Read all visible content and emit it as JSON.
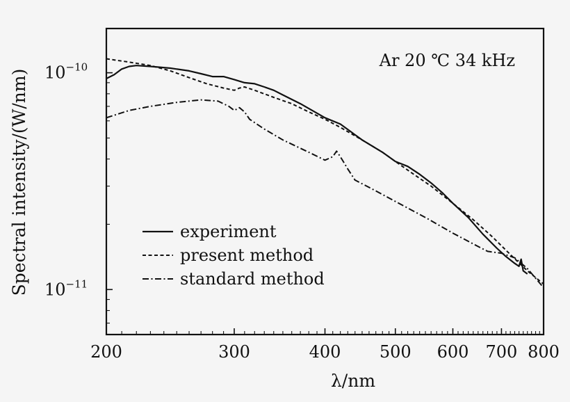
{
  "chart_data": {
    "type": "line",
    "title": "",
    "annotation": "Ar 20 ℃ 34 kHz",
    "xlabel": "λ/nm",
    "ylabel": "Spectral intensity/(W/nm)",
    "x_scale": "log",
    "y_scale": "log",
    "xlim": [
      200,
      800
    ],
    "ylim": [
      6.2e-12,
      1.6e-10
    ],
    "x_ticks": [
      200,
      300,
      400,
      500,
      600,
      700,
      800
    ],
    "x_tick_labels": [
      "200",
      "300",
      "400",
      "500",
      "600",
      "700",
      "800"
    ],
    "y_ticks": [
      {
        "value": 1e-10,
        "mantissa": "10",
        "exponent": "−10"
      },
      {
        "value": 1e-11,
        "mantissa": "10",
        "exponent": "−11"
      }
    ],
    "grid": false,
    "legend_position": "bottom-left",
    "series": [
      {
        "name": "experiment",
        "style": "solid",
        "x": [
          200,
          205,
          210,
          215,
          220,
          230,
          245,
          260,
          270,
          280,
          290,
          300,
          310,
          320,
          330,
          340,
          350,
          370,
          400,
          420,
          450,
          480,
          500,
          520,
          540,
          560,
          580,
          600,
          630,
          660,
          690,
          710,
          730,
          740,
          745,
          750,
          760
        ],
        "y": [
          9.4e-11,
          9.8e-11,
          1.04e-10,
          1.07e-10,
          1.08e-10,
          1.07e-10,
          1.05e-10,
          1.02e-10,
          9.9e-11,
          9.6e-11,
          9.6e-11,
          9.3e-11,
          9e-11,
          8.9e-11,
          8.6e-11,
          8.3e-11,
          7.9e-11,
          7.2e-11,
          6.2e-11,
          5.8e-11,
          4.9e-11,
          4.3e-11,
          3.9e-11,
          3.7e-11,
          3.4e-11,
          3.1e-11,
          2.8e-11,
          2.5e-11,
          2.15e-11,
          1.8e-11,
          1.55e-11,
          1.42e-11,
          1.32e-11,
          1.28e-11,
          1.38e-11,
          1.22e-11,
          1.18e-11
        ]
      },
      {
        "name": "present method",
        "style": "dashed",
        "x": [
          200,
          215,
          230,
          245,
          260,
          275,
          290,
          300,
          305,
          310,
          320,
          340,
          360,
          380,
          400,
          420,
          450,
          480,
          500,
          530,
          560,
          600,
          640,
          680,
          720,
          760,
          800
        ],
        "y": [
          1.16e-10,
          1.12e-10,
          1.08e-10,
          1.02e-10,
          9.5e-11,
          8.9e-11,
          8.5e-11,
          8.3e-11,
          8.5e-11,
          8.6e-11,
          8.3e-11,
          7.7e-11,
          7.2e-11,
          6.6e-11,
          6.1e-11,
          5.6e-11,
          4.9e-11,
          4.3e-11,
          3.9e-11,
          3.4e-11,
          3e-11,
          2.5e-11,
          2.1e-11,
          1.75e-11,
          1.45e-11,
          1.22e-11,
          1.06e-11
        ]
      },
      {
        "name": "standard method",
        "style": "dashdot",
        "x": [
          200,
          215,
          230,
          250,
          270,
          285,
          295,
          300,
          305,
          310,
          315,
          330,
          350,
          380,
          400,
          410,
          415,
          420,
          430,
          440,
          470,
          500,
          550,
          600,
          650,
          670,
          700,
          730,
          760,
          800
        ],
        "y": [
          6.2e-11,
          6.7e-11,
          7e-11,
          7.3e-11,
          7.5e-11,
          7.4e-11,
          7e-11,
          6.7e-11,
          6.9e-11,
          6.6e-11,
          6.1e-11,
          5.5e-11,
          4.9e-11,
          4.3e-11,
          3.95e-11,
          4.1e-11,
          4.35e-11,
          4.1e-11,
          3.6e-11,
          3.2e-11,
          2.85e-11,
          2.55e-11,
          2.15e-11,
          1.82e-11,
          1.58e-11,
          1.5e-11,
          1.47e-11,
          1.4e-11,
          1.25e-11,
          1.02e-11
        ]
      }
    ]
  }
}
